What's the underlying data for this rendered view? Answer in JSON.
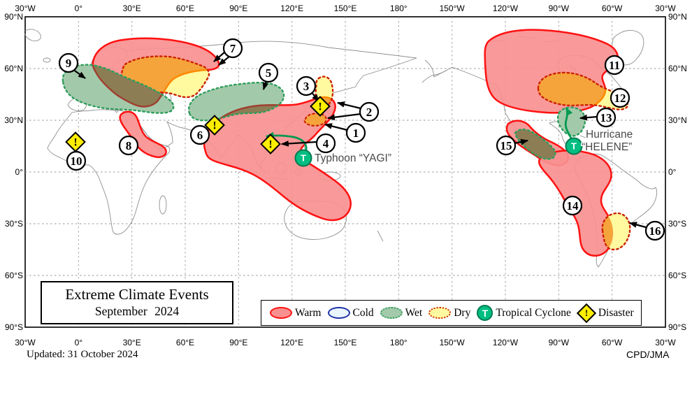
{
  "title_box": {
    "line1": "Extreme Climate Events",
    "line2": "September 2024"
  },
  "footer": {
    "updated": "Updated: 31 October 2024",
    "credit": "CPD/JMA"
  },
  "axes": {
    "top": [
      "30°W",
      "0°",
      "30°E",
      "60°E",
      "90°E",
      "120°E",
      "150°E",
      "180°",
      "150°W",
      "120°W",
      "90°W",
      "60°W",
      "30°W"
    ],
    "bottom": [
      "30°W",
      "0°",
      "30°E",
      "60°E",
      "90°E",
      "120°E",
      "150°E",
      "180°",
      "150°W",
      "120°W",
      "90°W",
      "60°W",
      "30°W"
    ],
    "left": [
      "90°N",
      "60°N",
      "30°N",
      "0°",
      "30°S",
      "60°S",
      "90°S"
    ],
    "right": [
      "90°N",
      "60°N",
      "30°N",
      "0°",
      "30°S",
      "60°S",
      "90°S"
    ]
  },
  "legend": {
    "warm": "Warm",
    "cold": "Cold",
    "wet": "Wet",
    "dry": "Dry",
    "tropical_cyclone": "Tropical Cyclone",
    "disaster": "Disaster",
    "cyclone_glyph": "T",
    "disaster_glyph": "!"
  },
  "map": {
    "callouts": [
      "1",
      "2",
      "3",
      "4",
      "5",
      "6",
      "7",
      "8",
      "9",
      "10",
      "11",
      "12",
      "13",
      "14",
      "15",
      "16"
    ],
    "cyclone_glyph": "T",
    "disaster_glyph": "!",
    "labels": {
      "typhoon": "Typhoon “YAGI”",
      "hurricane_line1": "Hurricane",
      "hurricane_line2": "“HELENE”"
    }
  },
  "colors": {
    "warm_fill": "#F99090",
    "warm_border": "#FF1111",
    "cold_fill": "#EAF6FC",
    "cold_border": "#2233AA",
    "wet_fill": "#A3C9AB",
    "wet_border": "#2E9E5B",
    "dry_fill": "#FFF9A0",
    "dry_border": "#CC2200",
    "dry_over_warm": "#F5A43C",
    "wet_over_warm": "#8C7D55",
    "cyclone_fill": "#00BE82",
    "cyclone_border": "#007A50",
    "disaster_fill": "#FFEE00"
  }
}
